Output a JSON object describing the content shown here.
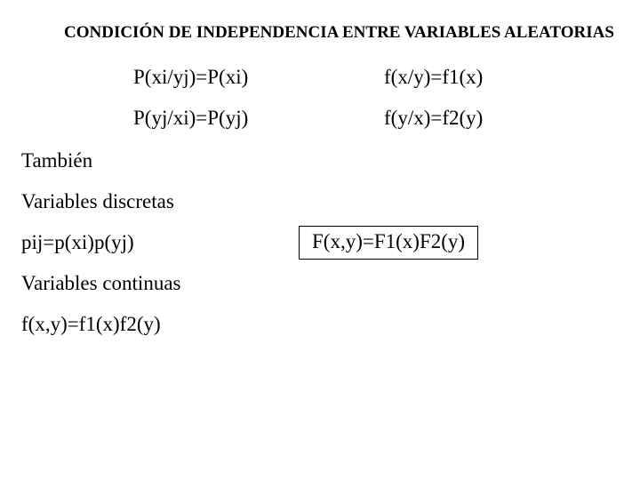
{
  "title": "CONDICIÓN DE INDEPENDENCIA ENTRE VARIABLES ALEATORIAS",
  "formulas": {
    "row1_left": "P(xi/yj)=P(xi)",
    "row1_right": "f(x/y)=f1(x)",
    "row2_left": "P(yj/xi)=P(yj)",
    "row2_right": "f(y/x)=f2(y)"
  },
  "labels": {
    "tambien": "También",
    "var_discretas": "Variables discretas",
    "var_continuas": "Variables continuas"
  },
  "equations": {
    "pij": "pij=p(xi)p(yj)",
    "boxed": "F(x,y)=F1(x)F2(y)",
    "fxy": "f(x,y)=f1(x)f2(y)"
  },
  "style": {
    "background_color": "#ffffff",
    "text_color": "#000000",
    "title_fontsize": 19,
    "body_fontsize": 23,
    "font_family": "Times New Roman"
  }
}
